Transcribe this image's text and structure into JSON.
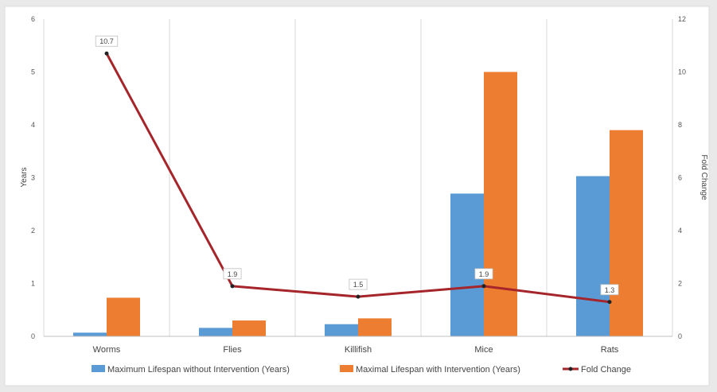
{
  "chart_data": {
    "type": "bar",
    "categories": [
      "Worms",
      "Flies",
      "Killifish",
      "Mice",
      "Rats"
    ],
    "series": [
      {
        "name": "Maximum Lifespan without Intervention (Years)",
        "kind": "bar",
        "axis": "left",
        "color": "#5B9BD5",
        "values": [
          0.07,
          0.16,
          0.23,
          2.7,
          3.03
        ]
      },
      {
        "name": "Maximal Lifespan with Intervention (Years)",
        "kind": "bar",
        "axis": "left",
        "color": "#ED7D31",
        "values": [
          0.73,
          0.3,
          0.34,
          5.0,
          3.9
        ]
      },
      {
        "name": "Fold Change",
        "kind": "line",
        "axis": "right",
        "color": "#A5252A",
        "values": [
          10.7,
          1.9,
          1.5,
          1.9,
          1.3
        ],
        "labels": [
          "10.7",
          "1.9",
          "1.5",
          "1.9",
          "1.3"
        ]
      }
    ],
    "ylabel": "Years",
    "y2label": "Fold Change",
    "ylim": [
      0,
      6
    ],
    "y2lim": [
      0,
      12
    ],
    "yticks": [
      "0",
      "1",
      "2",
      "3",
      "4",
      "5",
      "6"
    ],
    "y2ticks": [
      "0",
      "2",
      "4",
      "6",
      "8",
      "10",
      "12"
    ],
    "grid": "vertical",
    "legend": "bottom"
  }
}
